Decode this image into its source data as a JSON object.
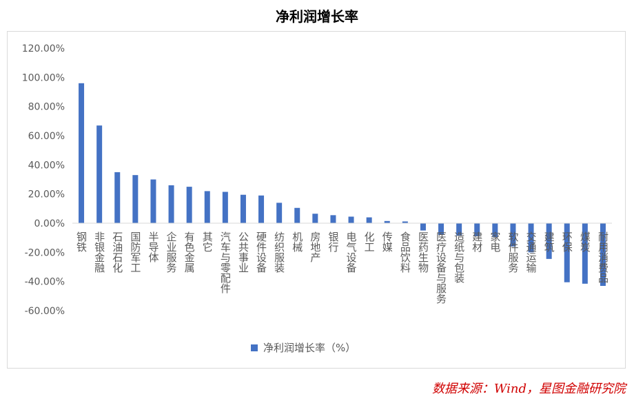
{
  "chart_data": {
    "type": "bar",
    "title": "净利润增长率",
    "xlabel": "",
    "ylabel": "",
    "ylim": [
      -0.6,
      1.2
    ],
    "yticks": [
      "120.00%",
      "100.00%",
      "80.00%",
      "60.00%",
      "40.00%",
      "20.00%",
      "0.00%",
      "-20.00%",
      "-40.00%",
      "-60.00%"
    ],
    "grid": false,
    "legend_position": "bottom",
    "bar_color": "#4472c4",
    "categories": [
      "钢铁",
      "非银金融",
      "石油石化",
      "国防军工",
      "半导体",
      "企业服务",
      "有色金属",
      "其它",
      "汽车与零配件",
      "公共事业",
      "硬件设备",
      "纺织服装",
      "机械",
      "房地产",
      "银行",
      "电气设备",
      "化工",
      "传媒",
      "食品饮料",
      "医药生物",
      "医疗设备与服务",
      "造纸与包装",
      "建材",
      "家电",
      "软件服务",
      "交通运输",
      "建筑",
      "环保",
      "煤炭",
      "耐用消费品"
    ],
    "series": [
      {
        "name": "净利润增长率（%）",
        "values": [
          0.96,
          0.67,
          0.35,
          0.33,
          0.3,
          0.26,
          0.25,
          0.22,
          0.215,
          0.195,
          0.19,
          0.14,
          0.105,
          0.065,
          0.055,
          0.045,
          0.04,
          0.015,
          0.012,
          -0.05,
          -0.08,
          -0.085,
          -0.09,
          -0.095,
          -0.16,
          -0.2,
          -0.245,
          -0.405,
          -0.415,
          -0.43
        ]
      }
    ]
  },
  "source": "数据来源：Wind，星图金融研究院"
}
